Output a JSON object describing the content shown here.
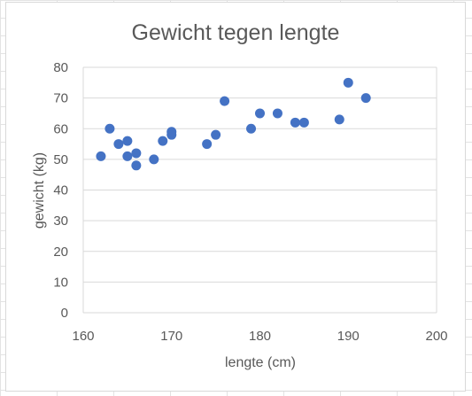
{
  "chart_data": {
    "type": "scatter",
    "title": "Gewicht tegen lengte",
    "xlabel": "lengte (cm)",
    "ylabel": "gewicht (kg)",
    "xlim": [
      160,
      200
    ],
    "ylim": [
      0,
      80
    ],
    "x_ticks": [
      160,
      170,
      180,
      190,
      200
    ],
    "y_ticks": [
      0,
      10,
      20,
      30,
      40,
      50,
      60,
      70,
      80
    ],
    "grid": "horizontal",
    "marker_color": "#4472c4",
    "points": [
      {
        "x": 162,
        "y": 51
      },
      {
        "x": 163,
        "y": 60
      },
      {
        "x": 164,
        "y": 55
      },
      {
        "x": 165,
        "y": 56
      },
      {
        "x": 165,
        "y": 51
      },
      {
        "x": 166,
        "y": 52
      },
      {
        "x": 166,
        "y": 48
      },
      {
        "x": 168,
        "y": 50
      },
      {
        "x": 169,
        "y": 56
      },
      {
        "x": 170,
        "y": 59
      },
      {
        "x": 170,
        "y": 58
      },
      {
        "x": 174,
        "y": 55
      },
      {
        "x": 175,
        "y": 58
      },
      {
        "x": 176,
        "y": 69
      },
      {
        "x": 179,
        "y": 60
      },
      {
        "x": 180,
        "y": 65
      },
      {
        "x": 182,
        "y": 65
      },
      {
        "x": 184,
        "y": 62
      },
      {
        "x": 185,
        "y": 62
      },
      {
        "x": 189,
        "y": 63
      },
      {
        "x": 190,
        "y": 75
      },
      {
        "x": 192,
        "y": 70
      }
    ]
  }
}
